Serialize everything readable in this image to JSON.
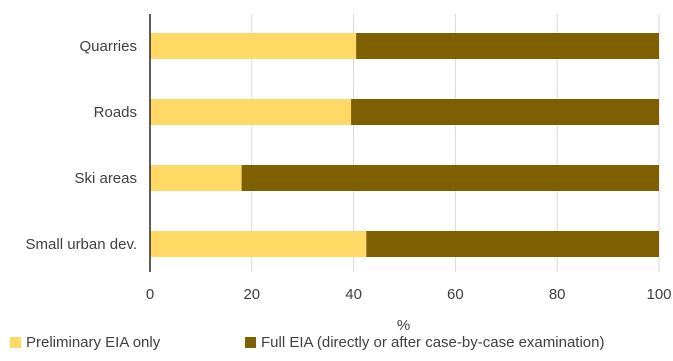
{
  "chart_data": {
    "type": "bar",
    "orientation": "horizontal",
    "stacked": true,
    "categories": [
      "Quarries",
      "Roads",
      "Ski areas",
      "Small urban dev."
    ],
    "series": [
      {
        "name": "Preliminary EIA only",
        "color": "#FFD966",
        "values": [
          40.5,
          39.5,
          18.0,
          42.5
        ]
      },
      {
        "name": "Full EIA (directly or after case-by-case examination)",
        "color": "#7F6000",
        "values": [
          59.5,
          60.5,
          82.0,
          57.5
        ]
      }
    ],
    "xlabel": "%",
    "ylabel": "",
    "xlim": [
      0,
      100
    ],
    "xticks": [
      "0",
      "20",
      "40",
      "60",
      "80",
      "100"
    ],
    "grid": "vertical",
    "legend_position": "bottom"
  }
}
